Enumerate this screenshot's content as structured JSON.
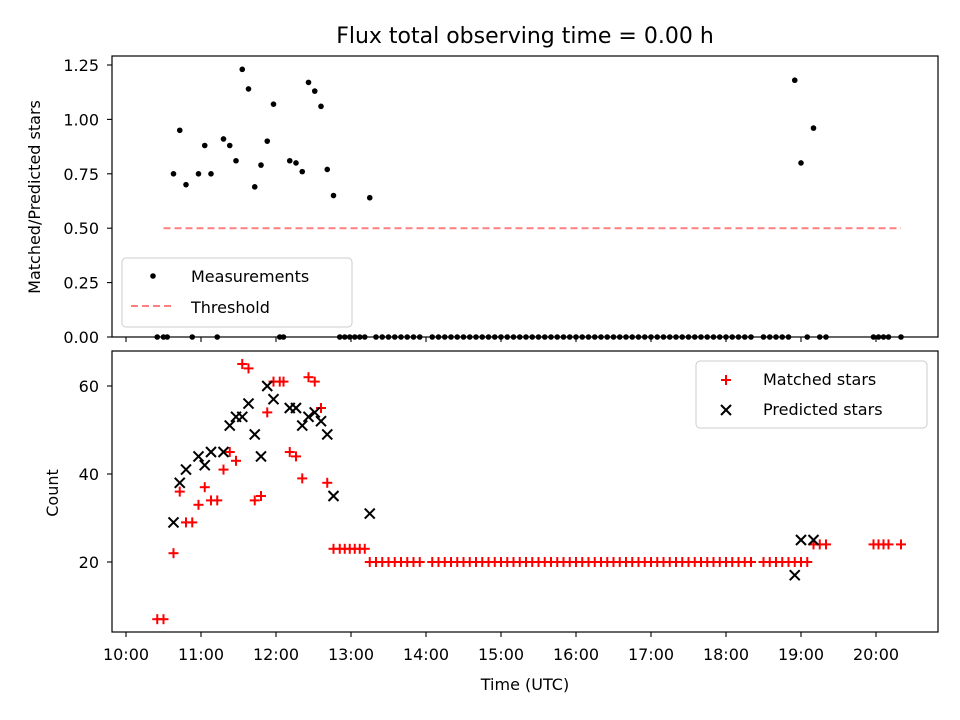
{
  "chart_data": [
    {
      "type": "scatter",
      "title": "Flux total observing time = 0.00 h",
      "xlabel": "",
      "ylabel": "Matched/Predicted stars",
      "xlim": [
        "10:00",
        "20:50"
      ],
      "ylim": [
        0,
        1.28
      ],
      "yticks": [
        "0.00",
        "0.25",
        "0.50",
        "0.75",
        "1.00",
        "1.25"
      ],
      "legend": {
        "position": "lower-left",
        "entries": [
          "Measurements",
          "Threshold"
        ]
      },
      "threshold": {
        "name": "Threshold",
        "value": 0.5,
        "x_start": "10:30",
        "x_end": "20:20",
        "color": "#ff8080",
        "style": "dashed"
      },
      "series": [
        {
          "name": "Measurements",
          "marker": "dot",
          "color": "#000000",
          "points": [
            [
              "10:25",
              0
            ],
            [
              "10:30",
              0
            ],
            [
              "10:33",
              0
            ],
            [
              "10:38",
              0.75
            ],
            [
              "10:43",
              0.95
            ],
            [
              "10:48",
              0.7
            ],
            [
              "10:53",
              0
            ],
            [
              "10:58",
              0.75
            ],
            [
              "11:03",
              0.88
            ],
            [
              "11:08",
              0.75
            ],
            [
              "11:13",
              0
            ],
            [
              "11:18",
              0.91
            ],
            [
              "11:23",
              0.88
            ],
            [
              "11:28",
              0.81
            ],
            [
              "11:33",
              1.23
            ],
            [
              "11:38",
              1.14
            ],
            [
              "11:43",
              0.69
            ],
            [
              "11:48",
              0.79
            ],
            [
              "11:53",
              0.9
            ],
            [
              "11:58",
              1.07
            ],
            [
              "12:03",
              0
            ],
            [
              "12:06",
              0
            ],
            [
              "12:11",
              0.81
            ],
            [
              "12:16",
              0.8
            ],
            [
              "12:21",
              0.76
            ],
            [
              "12:26",
              1.17
            ],
            [
              "12:31",
              1.13
            ],
            [
              "12:36",
              1.06
            ],
            [
              "12:41",
              0.77
            ],
            [
              "12:46",
              0.65
            ],
            [
              "12:51",
              0
            ],
            [
              "12:55",
              0
            ],
            [
              "12:59",
              0
            ],
            [
              "13:03",
              0
            ],
            [
              "13:07",
              0
            ],
            [
              "13:11",
              0
            ],
            [
              "13:15",
              0.64
            ],
            [
              "13:20",
              0
            ],
            [
              "13:25",
              0
            ],
            [
              "13:30",
              0
            ],
            [
              "13:35",
              0
            ],
            [
              "13:40",
              0
            ],
            [
              "13:45",
              0
            ],
            [
              "13:50",
              0
            ],
            [
              "13:55",
              0
            ],
            [
              "14:05",
              0
            ],
            [
              "14:10",
              0
            ],
            [
              "14:15",
              0
            ],
            [
              "14:20",
              0
            ],
            [
              "14:25",
              0
            ],
            [
              "14:30",
              0
            ],
            [
              "14:35",
              0
            ],
            [
              "14:40",
              0
            ],
            [
              "14:45",
              0
            ],
            [
              "14:50",
              0
            ],
            [
              "14:55",
              0
            ],
            [
              "15:00",
              0
            ],
            [
              "15:05",
              0
            ],
            [
              "15:10",
              0
            ],
            [
              "15:15",
              0
            ],
            [
              "15:20",
              0
            ],
            [
              "15:25",
              0
            ],
            [
              "15:30",
              0
            ],
            [
              "15:35",
              0
            ],
            [
              "15:40",
              0
            ],
            [
              "15:45",
              0
            ],
            [
              "15:50",
              0
            ],
            [
              "15:55",
              0
            ],
            [
              "16:00",
              0
            ],
            [
              "16:05",
              0
            ],
            [
              "16:10",
              0
            ],
            [
              "16:15",
              0
            ],
            [
              "16:20",
              0
            ],
            [
              "16:25",
              0
            ],
            [
              "16:30",
              0
            ],
            [
              "16:35",
              0
            ],
            [
              "16:40",
              0
            ],
            [
              "16:45",
              0
            ],
            [
              "16:50",
              0
            ],
            [
              "16:55",
              0
            ],
            [
              "17:00",
              0
            ],
            [
              "17:05",
              0
            ],
            [
              "17:10",
              0
            ],
            [
              "17:15",
              0
            ],
            [
              "17:20",
              0
            ],
            [
              "17:25",
              0
            ],
            [
              "17:30",
              0
            ],
            [
              "17:35",
              0
            ],
            [
              "17:40",
              0
            ],
            [
              "17:45",
              0
            ],
            [
              "17:50",
              0
            ],
            [
              "17:55",
              0
            ],
            [
              "18:00",
              0
            ],
            [
              "18:05",
              0
            ],
            [
              "18:10",
              0
            ],
            [
              "18:15",
              0
            ],
            [
              "18:20",
              0
            ],
            [
              "18:30",
              0
            ],
            [
              "18:35",
              0
            ],
            [
              "18:40",
              0
            ],
            [
              "18:45",
              0
            ],
            [
              "18:50",
              0
            ],
            [
              "18:55",
              1.18
            ],
            [
              "19:00",
              0.8
            ],
            [
              "19:05",
              0
            ],
            [
              "19:10",
              0.96
            ],
            [
              "19:15",
              0
            ],
            [
              "19:20",
              0
            ],
            [
              "19:58",
              0
            ],
            [
              "20:02",
              0
            ],
            [
              "20:06",
              0
            ],
            [
              "20:10",
              0
            ],
            [
              "20:20",
              0
            ]
          ]
        }
      ]
    },
    {
      "type": "scatter",
      "title": "",
      "xlabel": "Time (UTC)",
      "ylabel": "Count",
      "xlim": [
        "10:00",
        "20:50"
      ],
      "ylim": [
        3,
        68
      ],
      "yticks": [
        "20",
        "40",
        "60"
      ],
      "xticks": [
        "10:00",
        "11:00",
        "12:00",
        "13:00",
        "14:00",
        "15:00",
        "16:00",
        "17:00",
        "18:00",
        "19:00",
        "20:00"
      ],
      "legend": {
        "position": "top-right",
        "entries": [
          "Matched stars",
          "Predicted stars"
        ]
      },
      "series": [
        {
          "name": "Matched stars",
          "marker": "plus",
          "color": "#ff0000",
          "points": [
            [
              "10:25",
              7
            ],
            [
              "10:30",
              7
            ],
            [
              "10:38",
              22
            ],
            [
              "10:43",
              36
            ],
            [
              "10:48",
              29
            ],
            [
              "10:53",
              29
            ],
            [
              "10:58",
              33
            ],
            [
              "11:03",
              37
            ],
            [
              "11:08",
              34
            ],
            [
              "11:13",
              34
            ],
            [
              "11:18",
              41
            ],
            [
              "11:23",
              45
            ],
            [
              "11:28",
              43
            ],
            [
              "11:33",
              65
            ],
            [
              "11:38",
              64
            ],
            [
              "11:43",
              34
            ],
            [
              "11:48",
              35
            ],
            [
              "11:53",
              54
            ],
            [
              "11:58",
              61
            ],
            [
              "12:03",
              61
            ],
            [
              "12:06",
              61
            ],
            [
              "12:11",
              45
            ],
            [
              "12:16",
              44
            ],
            [
              "12:21",
              39
            ],
            [
              "12:26",
              62
            ],
            [
              "12:31",
              61
            ],
            [
              "12:36",
              55
            ],
            [
              "12:41",
              38
            ],
            [
              "12:46",
              23
            ],
            [
              "12:51",
              23
            ],
            [
              "12:55",
              23
            ],
            [
              "12:59",
              23
            ],
            [
              "13:03",
              23
            ],
            [
              "13:07",
              23
            ],
            [
              "13:11",
              23
            ],
            [
              "13:15",
              20
            ],
            [
              "13:20",
              20
            ],
            [
              "13:25",
              20
            ],
            [
              "13:30",
              20
            ],
            [
              "13:35",
              20
            ],
            [
              "13:40",
              20
            ],
            [
              "13:45",
              20
            ],
            [
              "13:50",
              20
            ],
            [
              "13:55",
              20
            ],
            [
              "14:05",
              20
            ],
            [
              "14:10",
              20
            ],
            [
              "14:15",
              20
            ],
            [
              "14:20",
              20
            ],
            [
              "14:25",
              20
            ],
            [
              "14:30",
              20
            ],
            [
              "14:35",
              20
            ],
            [
              "14:40",
              20
            ],
            [
              "14:45",
              20
            ],
            [
              "14:50",
              20
            ],
            [
              "14:55",
              20
            ],
            [
              "15:00",
              20
            ],
            [
              "15:05",
              20
            ],
            [
              "15:10",
              20
            ],
            [
              "15:15",
              20
            ],
            [
              "15:20",
              20
            ],
            [
              "15:25",
              20
            ],
            [
              "15:30",
              20
            ],
            [
              "15:35",
              20
            ],
            [
              "15:40",
              20
            ],
            [
              "15:45",
              20
            ],
            [
              "15:50",
              20
            ],
            [
              "15:55",
              20
            ],
            [
              "16:00",
              20
            ],
            [
              "16:05",
              20
            ],
            [
              "16:10",
              20
            ],
            [
              "16:15",
              20
            ],
            [
              "16:20",
              20
            ],
            [
              "16:25",
              20
            ],
            [
              "16:30",
              20
            ],
            [
              "16:35",
              20
            ],
            [
              "16:40",
              20
            ],
            [
              "16:45",
              20
            ],
            [
              "16:50",
              20
            ],
            [
              "16:55",
              20
            ],
            [
              "17:00",
              20
            ],
            [
              "17:05",
              20
            ],
            [
              "17:10",
              20
            ],
            [
              "17:15",
              20
            ],
            [
              "17:20",
              20
            ],
            [
              "17:25",
              20
            ],
            [
              "17:30",
              20
            ],
            [
              "17:35",
              20
            ],
            [
              "17:40",
              20
            ],
            [
              "17:45",
              20
            ],
            [
              "17:50",
              20
            ],
            [
              "17:55",
              20
            ],
            [
              "18:00",
              20
            ],
            [
              "18:05",
              20
            ],
            [
              "18:10",
              20
            ],
            [
              "18:15",
              20
            ],
            [
              "18:20",
              20
            ],
            [
              "18:30",
              20
            ],
            [
              "18:35",
              20
            ],
            [
              "18:40",
              20
            ],
            [
              "18:45",
              20
            ],
            [
              "18:50",
              20
            ],
            [
              "18:55",
              20
            ],
            [
              "19:00",
              20
            ],
            [
              "19:05",
              20
            ],
            [
              "19:10",
              24
            ],
            [
              "19:15",
              24
            ],
            [
              "19:20",
              24
            ],
            [
              "19:58",
              24
            ],
            [
              "20:02",
              24
            ],
            [
              "20:06",
              24
            ],
            [
              "20:10",
              24
            ],
            [
              "20:20",
              24
            ]
          ]
        },
        {
          "name": "Predicted stars",
          "marker": "x",
          "color": "#000000",
          "points": [
            [
              "10:38",
              29
            ],
            [
              "10:43",
              38
            ],
            [
              "10:48",
              41
            ],
            [
              "10:58",
              44
            ],
            [
              "11:03",
              42
            ],
            [
              "11:08",
              45
            ],
            [
              "11:18",
              45
            ],
            [
              "11:23",
              51
            ],
            [
              "11:28",
              53
            ],
            [
              "11:33",
              53
            ],
            [
              "11:38",
              56
            ],
            [
              "11:43",
              49
            ],
            [
              "11:48",
              44
            ],
            [
              "11:53",
              60
            ],
            [
              "11:58",
              57
            ],
            [
              "12:11",
              55
            ],
            [
              "12:16",
              55
            ],
            [
              "12:21",
              51
            ],
            [
              "12:26",
              53
            ],
            [
              "12:31",
              54
            ],
            [
              "12:36",
              52
            ],
            [
              "12:41",
              49
            ],
            [
              "12:46",
              35
            ],
            [
              "13:15",
              31
            ],
            [
              "18:55",
              17
            ],
            [
              "19:00",
              25
            ],
            [
              "19:10",
              25
            ]
          ]
        }
      ]
    }
  ]
}
